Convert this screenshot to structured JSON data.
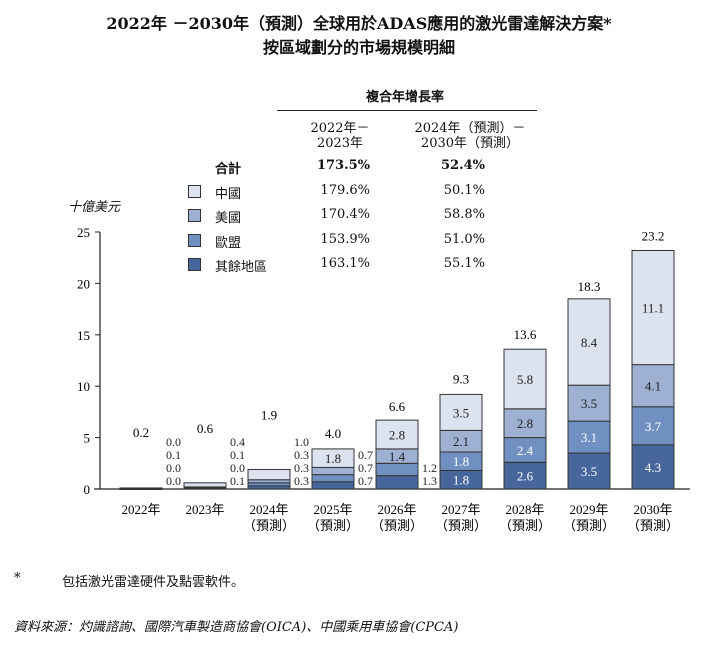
{
  "title_line1": "2022年 －2030年（預測）全球用於ADAS應用的激光雷達解決方案*",
  "title_line2": "按區域劃分的市場規模明細",
  "cagr_header": "複合年增長率",
  "cagr_col1": [
    "2022年－",
    "2023年"
  ],
  "cagr_col2": [
    "2024年（預測）－",
    "2030年（預測）"
  ],
  "cagr_rows": [
    {
      "label": "合計",
      "c1": "173.5%",
      "c2": "52.4%",
      "bold": true
    },
    {
      "label": "中國",
      "c1": "179.6%",
      "c2": "50.1%",
      "color": "#dde3ee"
    },
    {
      "label": "美國",
      "c1": "170.4%",
      "c2": "58.8%",
      "color": "#9eb1d3"
    },
    {
      "label": "歐盟",
      "c1": "153.9%",
      "c2": "51.0%",
      "color": "#7090c2"
    },
    {
      "label": "其餘地區",
      "c1": "163.1%",
      "c2": "55.1%",
      "color": "#47679c"
    }
  ],
  "footnote_mark": "*",
  "footnote": "包括激光雷達硬件及點雲軟件。",
  "source": "資料來源：灼識諮詢、國際汽車製造商協會(OICA)、中國乘用車協會(CPCA)",
  "chart_data": {
    "type": "bar",
    "stacked": true,
    "ylabel": "十億美元",
    "ylim": [
      0,
      25
    ],
    "yticks": [
      0,
      5,
      10,
      15,
      20,
      25
    ],
    "categories": [
      [
        "2022年"
      ],
      [
        "2023年"
      ],
      [
        "2024年",
        "（預測）"
      ],
      [
        "2025年",
        "（預測）"
      ],
      [
        "2026年",
        "（預測）"
      ],
      [
        "2027年",
        "（預測）"
      ],
      [
        "2028年",
        "（預測）"
      ],
      [
        "2029年",
        "（預測）"
      ],
      [
        "2030年",
        "（預測）"
      ]
    ],
    "series": [
      {
        "name": "其餘地區",
        "color": "#47679c",
        "values": [
          0.0,
          0.1,
          0.3,
          0.7,
          1.3,
          1.8,
          2.6,
          3.5,
          4.3
        ]
      },
      {
        "name": "歐盟",
        "color": "#7090c2",
        "values": [
          0.0,
          0.0,
          0.3,
          0.7,
          1.2,
          1.8,
          2.4,
          3.1,
          3.7
        ]
      },
      {
        "name": "美國",
        "color": "#9eb1d3",
        "values": [
          0.1,
          0.1,
          0.3,
          0.7,
          1.4,
          2.1,
          2.8,
          3.5,
          4.1
        ]
      },
      {
        "name": "中國",
        "color": "#dde3ee",
        "values": [
          0.0,
          0.4,
          1.0,
          1.8,
          2.8,
          3.5,
          5.8,
          8.4,
          11.1
        ]
      }
    ],
    "totals": [
      0.2,
      0.6,
      1.9,
      4.0,
      6.6,
      9.3,
      13.6,
      18.3,
      23.2
    ]
  }
}
